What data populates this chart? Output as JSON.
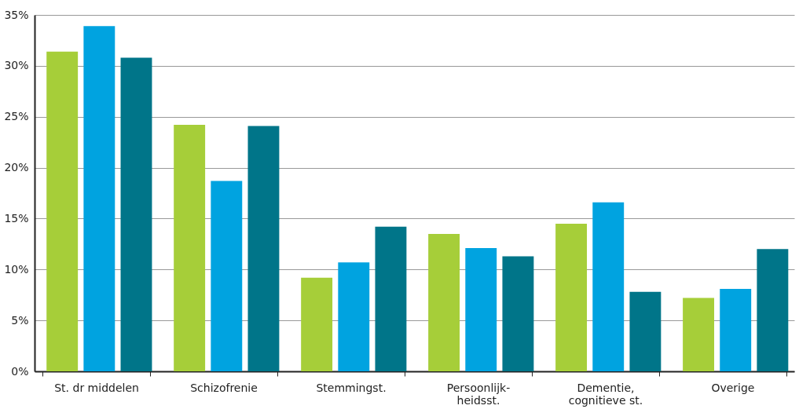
{
  "chart_data": {
    "type": "bar",
    "categories": [
      "St. dr middelen",
      "Schizofrenie",
      "Stemmingst.",
      "Persoonlijk-\nheidsst.",
      "Dementie,\ncognitieve st.",
      "Overige"
    ],
    "series": [
      {
        "color": "#a6ce39",
        "values": [
          31.4,
          24.2,
          9.2,
          13.5,
          14.5,
          7.2
        ]
      },
      {
        "color": "#00a3e0",
        "values": [
          33.9,
          18.7,
          10.7,
          12.1,
          16.6,
          8.1
        ]
      },
      {
        "color": "#007589",
        "values": [
          30.8,
          24.1,
          14.2,
          11.3,
          7.8,
          12.0
        ]
      }
    ],
    "ylim": [
      0,
      35
    ],
    "yticks": [
      {
        "value": 0,
        "label": "0%"
      },
      {
        "value": 5,
        "label": "5%"
      },
      {
        "value": 10,
        "label": "10%"
      },
      {
        "value": 15,
        "label": "15%"
      },
      {
        "value": 20,
        "label": "20%"
      },
      {
        "value": 25,
        "label": "25%"
      },
      {
        "value": 30,
        "label": "30%"
      },
      {
        "value": 35,
        "label": "35%"
      }
    ],
    "grid": "y",
    "legend": false
  }
}
